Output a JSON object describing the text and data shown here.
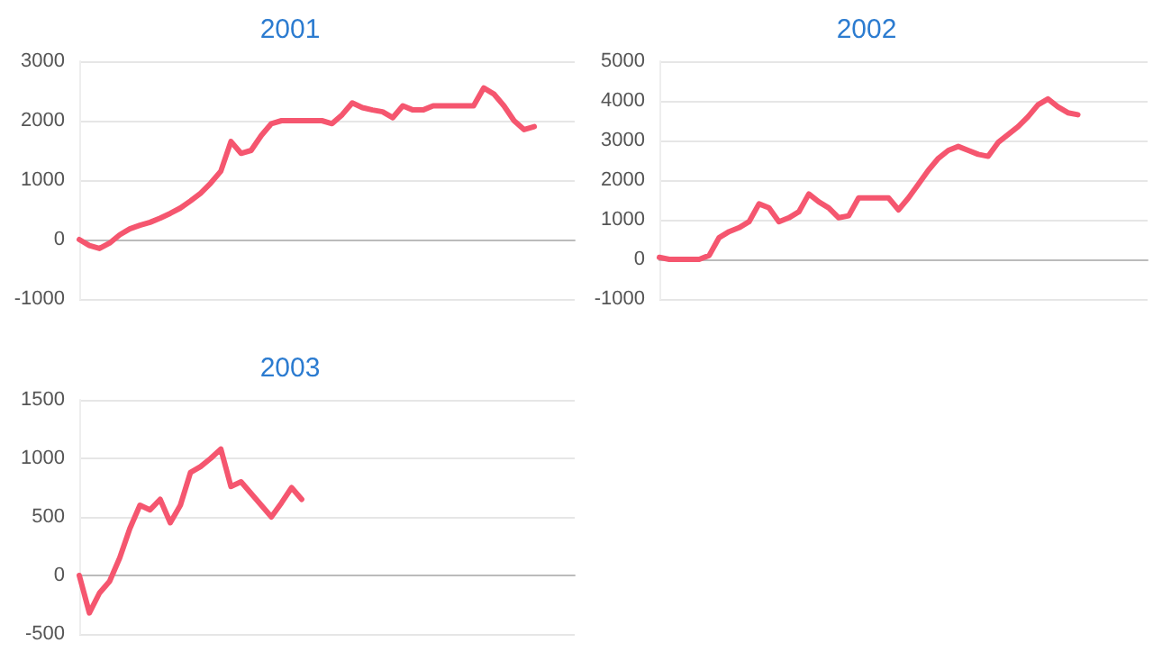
{
  "chart_data": [
    {
      "type": "line",
      "title": "2001",
      "categories": [
        null,
        null,
        null,
        null,
        null,
        null,
        null,
        null,
        null,
        null,
        null,
        null,
        null,
        null,
        null,
        null,
        null,
        null,
        null,
        null,
        null,
        null,
        null,
        null,
        null,
        null,
        null,
        null,
        null,
        null,
        null,
        null,
        null,
        null,
        null,
        null,
        null,
        null,
        null,
        null,
        null,
        null,
        null,
        null,
        null,
        null,
        null,
        null,
        null,
        null
      ],
      "series": [
        {
          "color": "#f5566f",
          "values": [
            0,
            -100,
            -150,
            -60,
            80,
            180,
            240,
            290,
            360,
            440,
            530,
            650,
            780,
            950,
            1150,
            1650,
            1450,
            1500,
            1750,
            1950,
            2000,
            2000,
            2000,
            2000,
            2000,
            1950,
            2100,
            2300,
            2220,
            2180,
            2150,
            2050,
            2250,
            2180,
            2180,
            2250,
            2250,
            2250,
            2250,
            2250,
            2550,
            2450,
            2250,
            2000,
            1850,
            1900,
            null,
            null,
            null,
            null
          ]
        }
      ],
      "ylim": [
        -1000,
        3000
      ],
      "yticks": [
        -1000,
        0,
        1000,
        2000,
        3000
      ],
      "grid": "y",
      "marker": "none",
      "line_style": "solid"
    },
    {
      "type": "line",
      "title": "2002",
      "categories": [
        null,
        null,
        null,
        null,
        null,
        null,
        null,
        null,
        null,
        null,
        null,
        null,
        null,
        null,
        null,
        null,
        null,
        null,
        null,
        null,
        null,
        null,
        null,
        null,
        null,
        null,
        null,
        null,
        null,
        null,
        null,
        null,
        null,
        null,
        null,
        null,
        null,
        null,
        null,
        null,
        null,
        null,
        null,
        null,
        null,
        null,
        null,
        null,
        null,
        null
      ],
      "series": [
        {
          "color": "#f5566f",
          "values": [
            50,
            0,
            0,
            0,
            0,
            100,
            550,
            700,
            800,
            950,
            1400,
            1300,
            950,
            1050,
            1200,
            1650,
            1450,
            1300,
            1050,
            1100,
            1550,
            1550,
            1550,
            1550,
            1250,
            1550,
            1900,
            2250,
            2550,
            2750,
            2850,
            2750,
            2650,
            2600,
            2950,
            3150,
            3350,
            3600,
            3900,
            4050,
            3850,
            3700,
            3650,
            null,
            null,
            null,
            null,
            null,
            null,
            null
          ]
        }
      ],
      "ylim": [
        -1000,
        5000
      ],
      "yticks": [
        -1000,
        0,
        1000,
        2000,
        3000,
        4000,
        5000
      ],
      "grid": "y",
      "marker": "none",
      "line_style": "solid"
    },
    {
      "type": "line",
      "title": "2003",
      "categories": [
        null,
        null,
        null,
        null,
        null,
        null,
        null,
        null,
        null,
        null,
        null,
        null,
        null,
        null,
        null,
        null,
        null,
        null,
        null,
        null,
        null,
        null,
        null,
        null,
        null,
        null,
        null,
        null,
        null,
        null,
        null,
        null,
        null,
        null,
        null,
        null,
        null,
        null,
        null,
        null,
        null,
        null,
        null,
        null,
        null,
        null,
        null,
        null,
        null,
        null
      ],
      "series": [
        {
          "color": "#f5566f",
          "values": [
            0,
            -320,
            -150,
            -50,
            150,
            400,
            600,
            560,
            650,
            450,
            600,
            880,
            930,
            1000,
            1080,
            760,
            800,
            700,
            600,
            500,
            620,
            750,
            650,
            null,
            null,
            null,
            null,
            null,
            null,
            null,
            null,
            null,
            null,
            null,
            null,
            null,
            null,
            null,
            null,
            null,
            null,
            null,
            null,
            null,
            null,
            null,
            null,
            null,
            null,
            null
          ]
        }
      ],
      "ylim": [
        -500,
        1500
      ],
      "yticks": [
        -500,
        0,
        500,
        1000,
        1500
      ],
      "grid": "y",
      "marker": "none",
      "line_style": "solid"
    }
  ]
}
